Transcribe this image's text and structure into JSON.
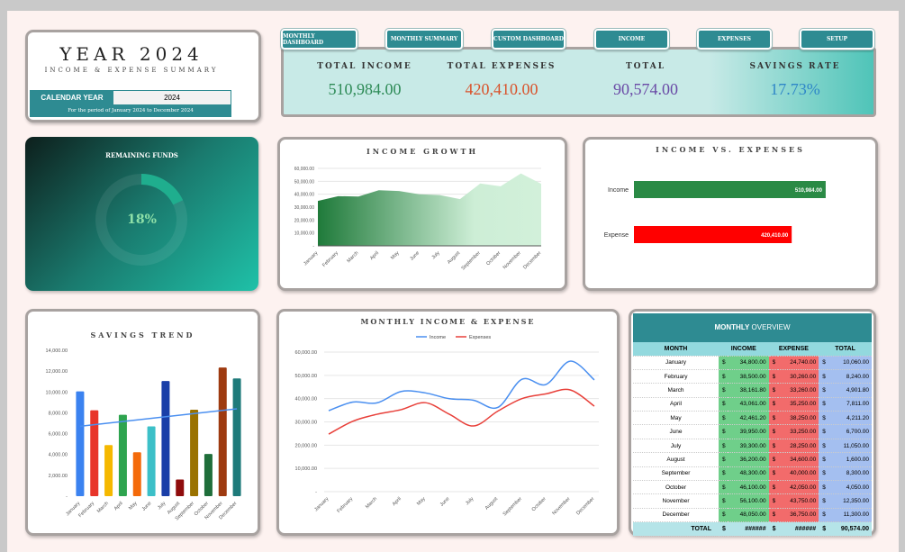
{
  "title_card": {
    "year_title": "YEAR 2024",
    "subtitle": "INCOME & EXPENSE SUMMARY",
    "calendar_label": "CALENDAR YEAR",
    "calendar_value": "2024",
    "period": "For the period of January 2024 to December 2024"
  },
  "nav": [
    "MONTHLY DASHBOARD",
    "MONTHLY SUMMARY",
    "CUSTOM DASHBOARD",
    "INCOME",
    "EXPENSES",
    "SETUP"
  ],
  "kpis": [
    {
      "label": "TOTAL INCOME",
      "value": "510,984.00",
      "color": "#2e8b57"
    },
    {
      "label": "TOTAL EXPENSES",
      "value": "420,410.00",
      "color": "#d9532c"
    },
    {
      "label": "TOTAL",
      "value": "90,574.00",
      "color": "#6a4aa6"
    },
    {
      "label": "SAVINGS RATE",
      "value": "17.73%",
      "color": "#2e86c8"
    }
  ],
  "remaining": {
    "title": "REMAINING FUNDS",
    "value": "18%",
    "fraction": 0.18
  },
  "months": [
    "January",
    "February",
    "March",
    "April",
    "May",
    "June",
    "July",
    "August",
    "September",
    "October",
    "November",
    "December"
  ],
  "income_growth": {
    "title": "INCOME GROWTH",
    "yticks": [
      "-",
      "10,000.00",
      "20,000.00",
      "30,000.00",
      "40,000.00",
      "50,000.00",
      "60,000.00"
    ]
  },
  "income_vs_expenses": {
    "title": "INCOME VS. EXPENSES",
    "bars": [
      {
        "label": "Income",
        "value": 510984,
        "text": "510,984.00",
        "color": "#2a8a45"
      },
      {
        "label": "Expense",
        "value": 420410,
        "text": "420,410.00",
        "color": "#ff0000"
      }
    ]
  },
  "savings_trend": {
    "title": "SAVINGS TREND",
    "yticks": [
      "-",
      "2,000.00",
      "4,000.00",
      "6,000.00",
      "8,000.00",
      "10,000.00",
      "12,000.00",
      "14,000.00"
    ],
    "colors": [
      "#3b82f0",
      "#e8352a",
      "#f5b800",
      "#2ea44f",
      "#f46a0a",
      "#3cc0c8",
      "#1a3fa8",
      "#8f0c0c",
      "#9a7200",
      "#1f6e3a",
      "#9e3a10",
      "#1e7a7a"
    ]
  },
  "monthly_chart": {
    "title": "MONTHLY INCOME & EXPENSE",
    "legend": [
      "Income",
      "Expenses"
    ],
    "colors": [
      "#4a8ff0",
      "#e8403a"
    ],
    "yticks": [
      "-",
      "10,000.00",
      "20,000.00",
      "30,000.00",
      "40,000.00",
      "50,000.00",
      "60,000.00"
    ]
  },
  "overview": {
    "title_bold": "MONTHLY",
    "title_rest": " OVERVIEW",
    "headers": [
      "MONTH",
      "INCOME",
      "EXPENSE",
      "TOTAL"
    ],
    "currency": "$",
    "rows": [
      [
        "January",
        "34,800.00",
        "24,740.00",
        "10,060.00"
      ],
      [
        "February",
        "38,500.00",
        "30,260.00",
        "8,240.00"
      ],
      [
        "March",
        "38,161.80",
        "33,260.00",
        "4,901.80"
      ],
      [
        "April",
        "43,061.00",
        "35,250.00",
        "7,811.00"
      ],
      [
        "May",
        "42,461.20",
        "38,250.00",
        "4,211.20"
      ],
      [
        "June",
        "39,950.00",
        "33,250.00",
        "6,700.00"
      ],
      [
        "July",
        "39,300.00",
        "28,250.00",
        "11,050.00"
      ],
      [
        "August",
        "36,200.00",
        "34,600.00",
        "1,600.00"
      ],
      [
        "September",
        "48,300.00",
        "40,000.00",
        "8,300.00"
      ],
      [
        "October",
        "46,100.00",
        "42,050.00",
        "4,050.00"
      ],
      [
        "November",
        "56,100.00",
        "43,750.00",
        "12,350.00"
      ],
      [
        "December",
        "48,050.00",
        "36,750.00",
        "11,300.00"
      ]
    ],
    "total_label": "TOTAL",
    "total_income": "######",
    "total_expense": "######",
    "total_total": "90,574.00"
  },
  "chart_data": {
    "type": "line",
    "categories": [
      "January",
      "February",
      "March",
      "April",
      "May",
      "June",
      "July",
      "August",
      "September",
      "October",
      "November",
      "December"
    ],
    "series": [
      {
        "name": "Income",
        "values": [
          34800,
          38500,
          38161.8,
          43061,
          42461.2,
          39950,
          39300,
          36200,
          48300,
          46100,
          56100,
          48050
        ]
      },
      {
        "name": "Expenses",
        "values": [
          24740,
          30260,
          33260,
          35250,
          38250,
          33250,
          28250,
          34600,
          40000,
          42050,
          43750,
          36750
        ]
      },
      {
        "name": "Savings",
        "values": [
          10060,
          8240,
          4901.8,
          7811,
          4211.2,
          6700,
          11050,
          1600,
          8300,
          4050,
          12350,
          11300
        ]
      }
    ],
    "ylim": [
      0,
      60000
    ]
  }
}
